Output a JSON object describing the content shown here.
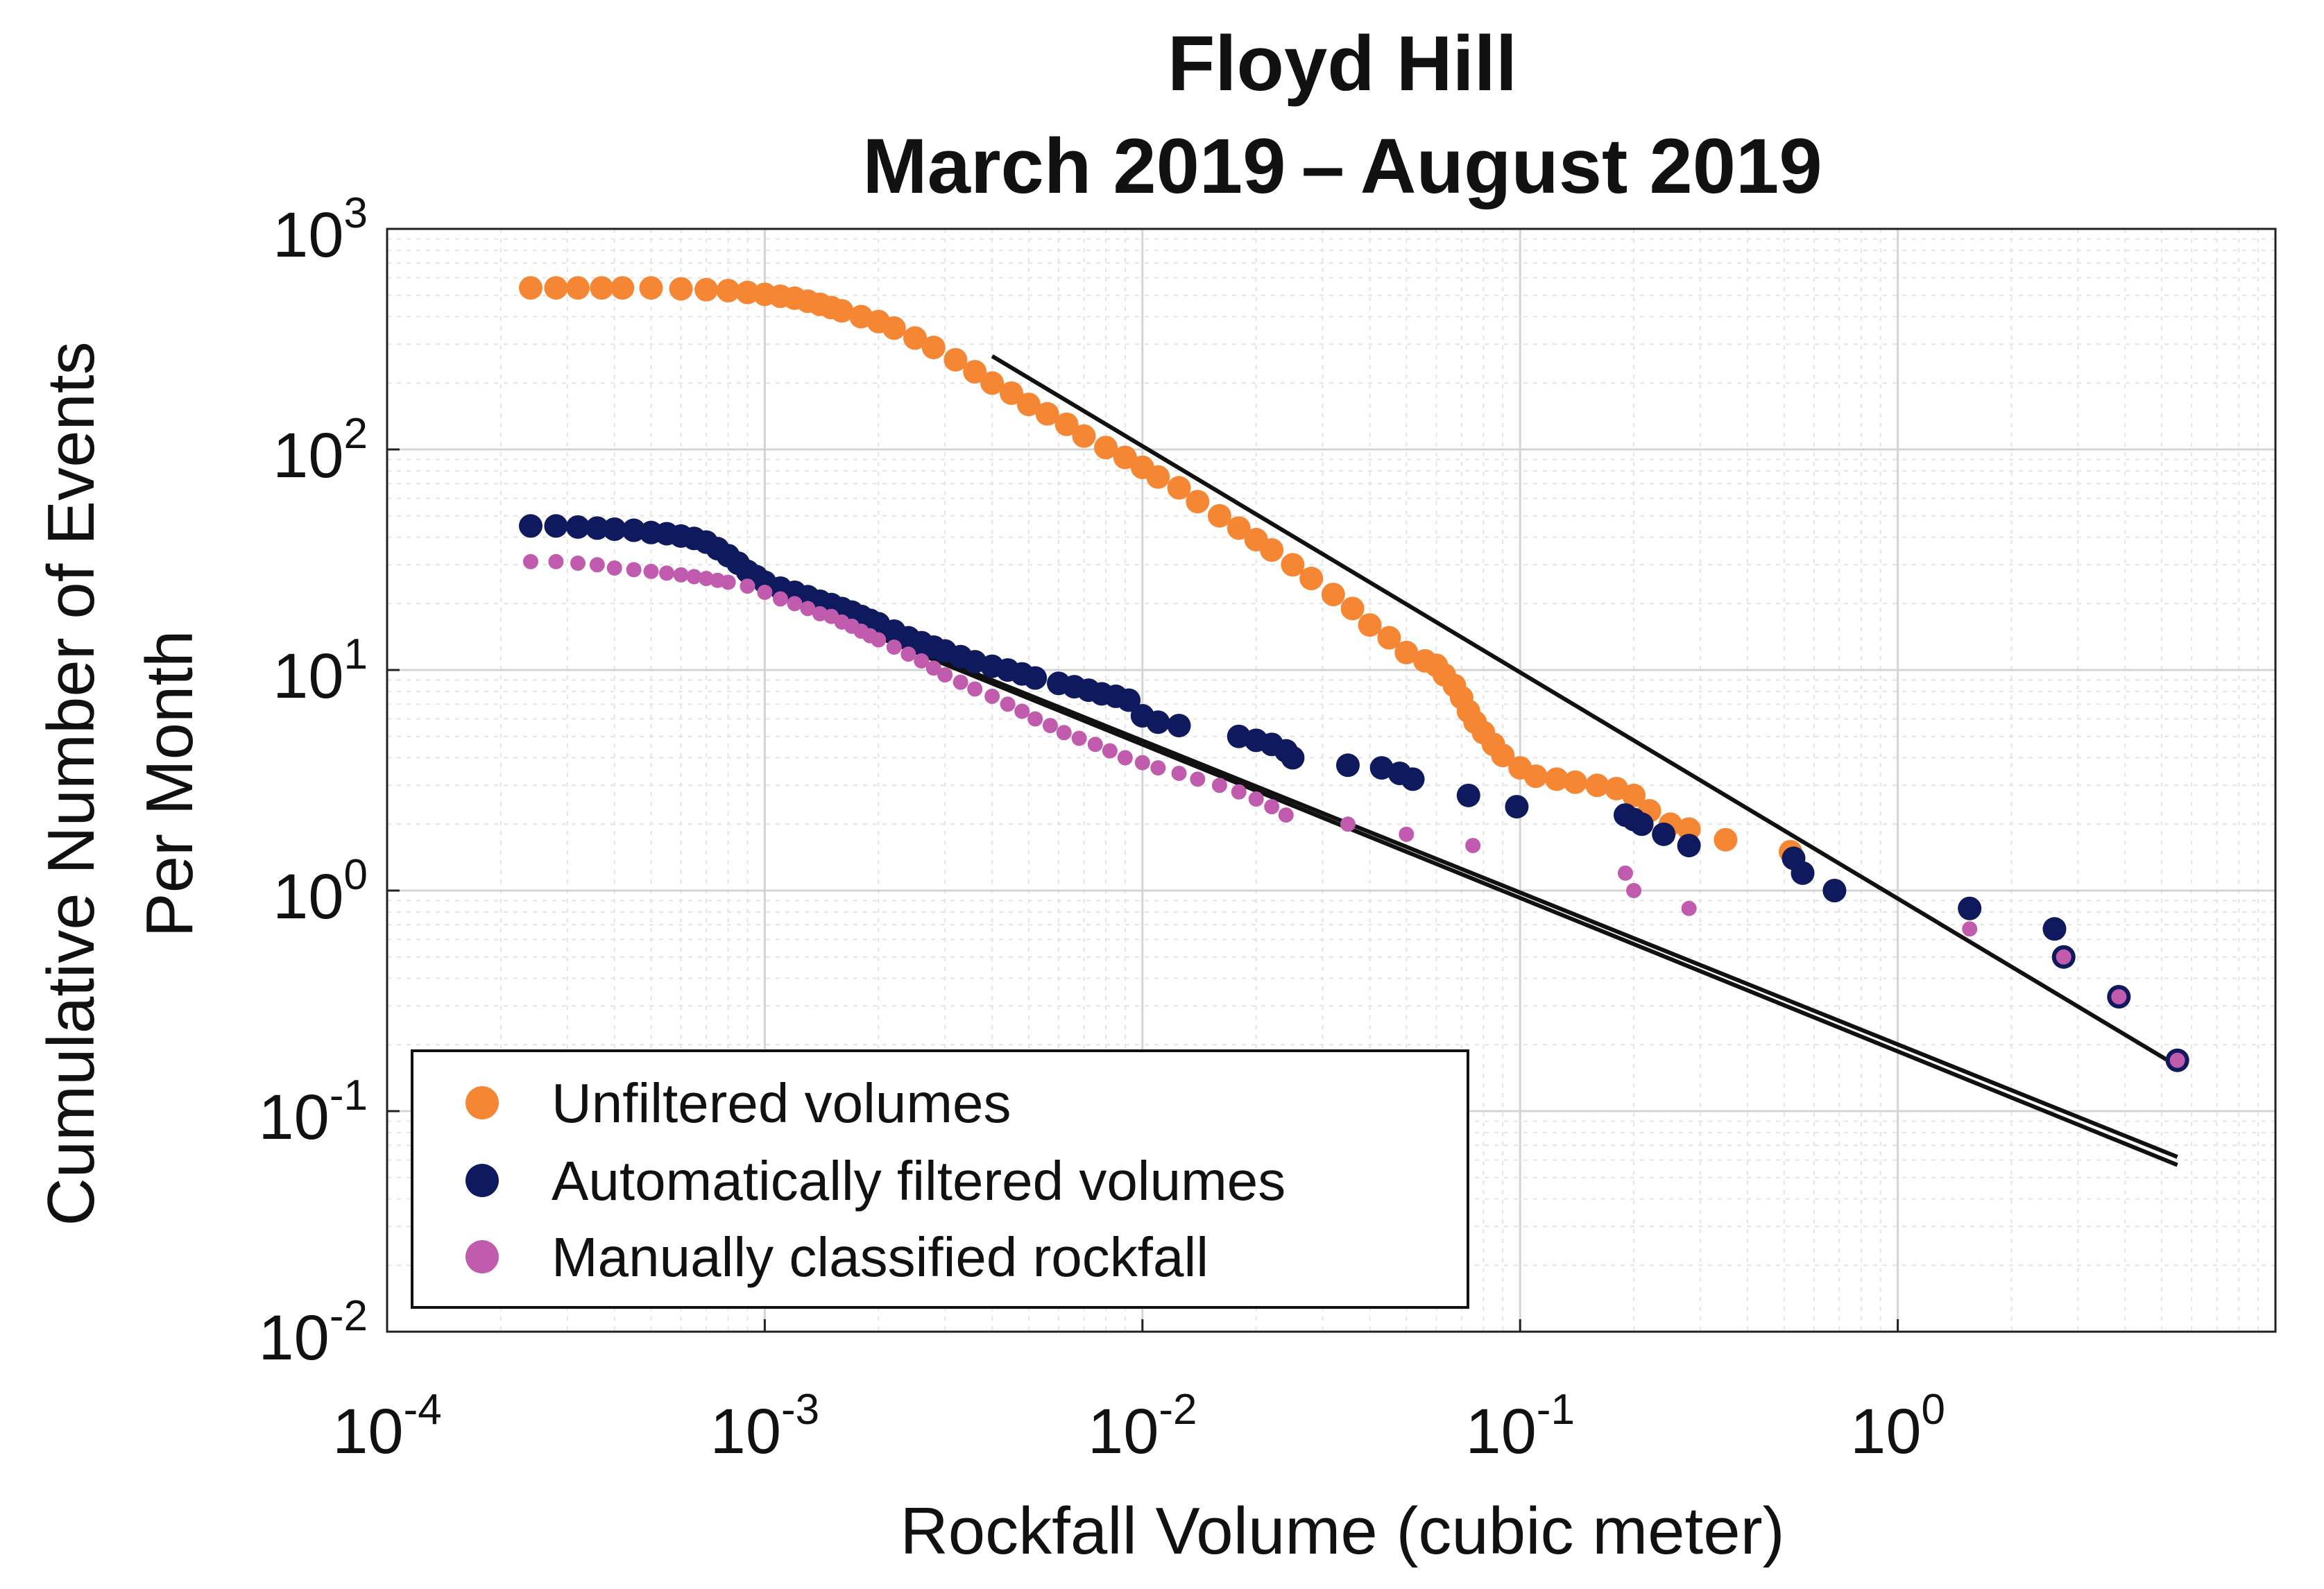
{
  "chart_data": {
    "type": "scatter",
    "title": [
      "Floyd Hill",
      "March 2019 – August 2019"
    ],
    "xlabel": "Rockfall Volume (cubic meter)",
    "ylabel": [
      "Cumulative Number of Events",
      "Per Month"
    ],
    "xscale": "log",
    "yscale": "log",
    "xlim": [
      0.0001,
      10
    ],
    "ylim": [
      0.01,
      1000
    ],
    "grid": true,
    "legend_position": "bottom-left",
    "x_ticks": [
      {
        "value": 0.0001,
        "base": "10",
        "exp": "-4"
      },
      {
        "value": 0.001,
        "base": "10",
        "exp": "-3"
      },
      {
        "value": 0.01,
        "base": "10",
        "exp": "-2"
      },
      {
        "value": 0.1,
        "base": "10",
        "exp": "-1"
      },
      {
        "value": 1,
        "base": "10",
        "exp": "0"
      }
    ],
    "y_ticks": [
      {
        "value": 0.01,
        "base": "10",
        "exp": "-2"
      },
      {
        "value": 0.1,
        "base": "10",
        "exp": "-1"
      },
      {
        "value": 1,
        "base": "10",
        "exp": "0"
      },
      {
        "value": 10,
        "base": "10",
        "exp": "1"
      },
      {
        "value": 100,
        "base": "10",
        "exp": "2"
      },
      {
        "value": 1000,
        "base": "10",
        "exp": "3"
      }
    ],
    "series": [
      {
        "name": "Unfiltered volumes",
        "color": "#F58634",
        "marker_size": "large",
        "x": [
          0.00024,
          0.00028,
          0.00032,
          0.00037,
          0.00042,
          0.0005,
          0.0006,
          0.0007,
          0.0008,
          0.0009,
          0.001,
          0.0011,
          0.0012,
          0.0013,
          0.0014,
          0.0015,
          0.0016,
          0.0018,
          0.002,
          0.0022,
          0.0025,
          0.0028,
          0.0032,
          0.0036,
          0.004,
          0.0045,
          0.005,
          0.0056,
          0.0063,
          0.007,
          0.008,
          0.009,
          0.01,
          0.011,
          0.0125,
          0.014,
          0.016,
          0.018,
          0.02,
          0.022,
          0.025,
          0.028,
          0.032,
          0.036,
          0.04,
          0.045,
          0.05,
          0.056,
          0.06,
          0.063,
          0.067,
          0.07,
          0.073,
          0.076,
          0.08,
          0.085,
          0.09,
          0.1,
          0.11,
          0.125,
          0.14,
          0.16,
          0.18,
          0.2,
          0.22,
          0.25,
          0.28,
          0.35,
          0.52,
          0.56,
          0.68,
          1.55,
          2.6,
          2.75,
          3.85,
          5.5
        ],
        "y": [
          540,
          540,
          540,
          540,
          540,
          540,
          535,
          530,
          525,
          515,
          505,
          495,
          485,
          470,
          455,
          440,
          425,
          400,
          380,
          355,
          320,
          290,
          255,
          225,
          200,
          180,
          160,
          145,
          130,
          115,
          102,
          92,
          83,
          75,
          67,
          58,
          50,
          44,
          39,
          35,
          30,
          26,
          22,
          19,
          16,
          14,
          12,
          11,
          10.5,
          9.5,
          8.5,
          7.5,
          6.5,
          5.8,
          5.2,
          4.6,
          4.1,
          3.6,
          3.3,
          3.2,
          3.1,
          3.0,
          2.9,
          2.7,
          2.3,
          2.0,
          1.9,
          1.7,
          1.5,
          1.2,
          1.0,
          0.83,
          0.67,
          0.5,
          0.33,
          0.17
        ]
      },
      {
        "name": "Automatically filtered volumes",
        "color": "#0F1A5E",
        "marker_size": "large",
        "x": [
          0.00024,
          0.00028,
          0.00032,
          0.00036,
          0.0004,
          0.00045,
          0.0005,
          0.00055,
          0.0006,
          0.00065,
          0.0007,
          0.00075,
          0.0008,
          0.00085,
          0.0009,
          0.00095,
          0.001,
          0.0011,
          0.0012,
          0.0013,
          0.0014,
          0.0015,
          0.0016,
          0.0017,
          0.0018,
          0.0019,
          0.002,
          0.0022,
          0.0024,
          0.0026,
          0.0028,
          0.003,
          0.0033,
          0.0036,
          0.004,
          0.0044,
          0.0048,
          0.0052,
          0.006,
          0.0066,
          0.0072,
          0.0078,
          0.0085,
          0.0092,
          0.01,
          0.011,
          0.0125,
          0.018,
          0.02,
          0.022,
          0.024,
          0.025,
          0.035,
          0.043,
          0.048,
          0.052,
          0.073,
          0.098,
          0.19,
          0.2,
          0.21,
          0.24,
          0.28,
          0.53,
          0.56,
          0.68,
          1.55,
          2.6,
          2.75,
          3.85,
          5.5
        ],
        "y": [
          45,
          45,
          44.5,
          44,
          43.5,
          43,
          42,
          41.5,
          40.5,
          39.5,
          38,
          35.5,
          33,
          30.5,
          28,
          26.5,
          25,
          23.5,
          22.5,
          21.5,
          20.5,
          19.8,
          19,
          18.3,
          17.5,
          16.8,
          16.2,
          15,
          14,
          13.3,
          12.7,
          12.2,
          11.5,
          10.9,
          10.4,
          10.0,
          9.6,
          9.2,
          8.7,
          8.4,
          8.1,
          7.8,
          7.6,
          7.3,
          6.2,
          5.8,
          5.6,
          5.0,
          4.8,
          4.6,
          4.3,
          4.0,
          3.7,
          3.6,
          3.4,
          3.2,
          2.7,
          2.4,
          2.2,
          2.1,
          2.0,
          1.8,
          1.6,
          1.4,
          1.2,
          1.0,
          0.83,
          0.67,
          0.5,
          0.33,
          0.17
        ]
      },
      {
        "name": "Manually classified rockfall",
        "color": "#C15BAD",
        "marker_size": "small",
        "x": [
          0.00024,
          0.00028,
          0.00032,
          0.00036,
          0.0004,
          0.00045,
          0.0005,
          0.00055,
          0.0006,
          0.00065,
          0.0007,
          0.00075,
          0.0008,
          0.0009,
          0.001,
          0.0011,
          0.0012,
          0.0013,
          0.0014,
          0.0015,
          0.0016,
          0.0017,
          0.0018,
          0.0019,
          0.002,
          0.0022,
          0.0024,
          0.0026,
          0.0028,
          0.003,
          0.0033,
          0.0036,
          0.004,
          0.0044,
          0.0048,
          0.0052,
          0.0057,
          0.0062,
          0.0068,
          0.0075,
          0.0082,
          0.009,
          0.01,
          0.011,
          0.0125,
          0.014,
          0.016,
          0.018,
          0.02,
          0.022,
          0.024,
          0.035,
          0.05,
          0.075,
          0.19,
          0.2,
          0.28,
          1.55,
          2.75,
          3.85,
          5.5
        ],
        "y": [
          31,
          31,
          30.5,
          30,
          29,
          28.5,
          28,
          27.5,
          27,
          26.5,
          26,
          25.5,
          25,
          24,
          22.5,
          21,
          20,
          19,
          18,
          17.5,
          16.5,
          15.8,
          15,
          14.3,
          13.7,
          12.7,
          11.8,
          11,
          10.2,
          9.5,
          8.8,
          8.2,
          7.6,
          7.0,
          6.5,
          6.0,
          5.6,
          5.2,
          4.9,
          4.6,
          4.3,
          4.0,
          3.8,
          3.6,
          3.4,
          3.2,
          3.0,
          2.8,
          2.6,
          2.4,
          2.2,
          2.0,
          1.8,
          1.6,
          1.2,
          1.0,
          0.83,
          0.67,
          0.5,
          0.33,
          0.17
        ]
      }
    ],
    "fit_lines": [
      {
        "name": "Unfiltered fit",
        "x": [
          0.004,
          5.5
        ],
        "y": [
          265,
          0.16
        ]
      },
      {
        "name": "Automatically filtered fit",
        "x": [
          0.00135,
          5.5
        ],
        "y": [
          19,
          0.062
        ]
      },
      {
        "name": "Manually classified fit",
        "x": [
          0.00135,
          5.5
        ],
        "y": [
          18.5,
          0.057
        ]
      }
    ]
  }
}
